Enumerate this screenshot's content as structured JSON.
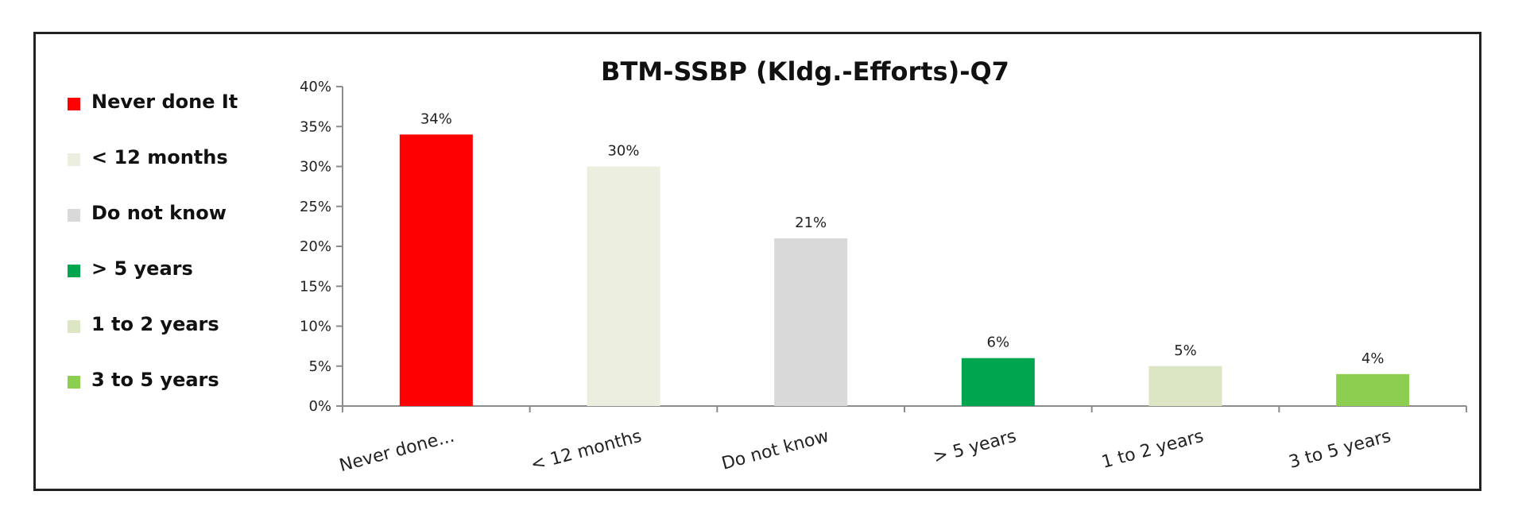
{
  "chart_data": {
    "type": "bar",
    "title": "BTM-SSBP (Kldg.-Efforts)-Q7",
    "xlabel": "",
    "ylabel": "",
    "ylim": [
      0,
      40
    ],
    "yticks": [
      "0%",
      "5%",
      "10%",
      "15%",
      "20%",
      "25%",
      "30%",
      "35%",
      "40%"
    ],
    "categories": [
      "Never done...",
      "< 12 months",
      "Do not know",
      "> 5 years",
      "1 to 2 years",
      "3 to 5 years"
    ],
    "values": [
      34,
      30,
      21,
      6,
      5,
      4
    ],
    "data_labels": [
      "34%",
      "30%",
      "21%",
      "6%",
      "5%",
      "4%"
    ],
    "colors": [
      "#ff0000",
      "#ecefe0",
      "#d9d9d9",
      "#00a550",
      "#dce6c4",
      "#8ccf50"
    ],
    "grid": false,
    "legend_position": "left",
    "legend": [
      {
        "label": "Never done It",
        "color": "#ff0000"
      },
      {
        "label": "< 12 months",
        "color": "#ecefe0"
      },
      {
        "label": "Do not know",
        "color": "#d9d9d9"
      },
      {
        "label": "> 5 years",
        "color": "#00a550"
      },
      {
        "label": "1 to 2 years",
        "color": "#dce6c4"
      },
      {
        "label": "3 to 5 years",
        "color": "#8ccf50"
      }
    ]
  }
}
